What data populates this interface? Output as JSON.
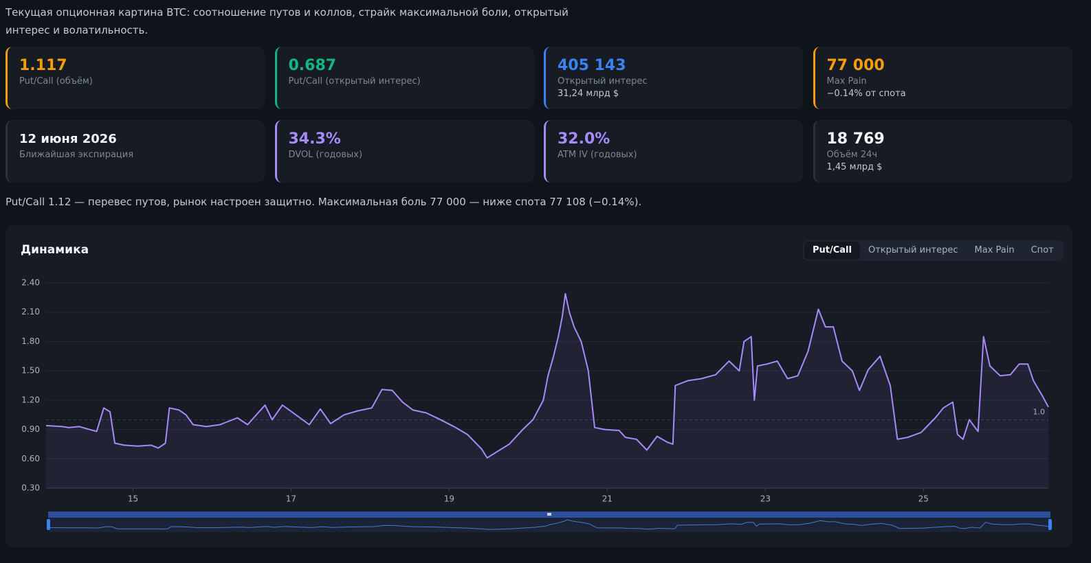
{
  "header": {
    "description": "Текущая опционная картина BTC: соотношение путов и коллов, страйк максимальной боли, открытый интерес и волатильность."
  },
  "cards": [
    {
      "value": "1.117",
      "label": "Put/Call (объём)",
      "color": "#f59e0b"
    },
    {
      "value": "0.687",
      "label": "Put/Call (открытый интерес)",
      "color": "#10b981"
    },
    {
      "value": "405 143",
      "label": "Открытый интерес",
      "sub": "31,24 млрд $",
      "color": "#3b82f6"
    },
    {
      "value": "77 000",
      "label": "Max Pain",
      "sub": "−0.14% от спота",
      "color": "#f59e0b"
    },
    {
      "value": "12 июня 2026",
      "label": "Ближайшая экспирация",
      "color": "#f1f5f9"
    },
    {
      "value": "34.3%",
      "label": "DVOL (годовых)",
      "color": "#a78bfa"
    },
    {
      "value": "32.0%",
      "label": "ATM IV (годовых)",
      "color": "#a78bfa"
    },
    {
      "value": "18 769",
      "label": "Объём 24ч",
      "sub": "1,45 млрд $",
      "color": "#f1f5f9"
    }
  ],
  "summary": "Put/Call 1.12 — перевес путов, рынок настроен защитно. Максимальная боль 77 000 — ниже спота 77 108 (−0.14%).",
  "panel": {
    "title": "Динамика",
    "tabs": [
      "Put/Call",
      "Открытый интерес",
      "Max Pain",
      "Спот"
    ],
    "active_tab": 0
  },
  "chart_data": {
    "type": "line",
    "color": "#a78bfa",
    "grid": true,
    "x": [
      13.9,
      14.1,
      14.19,
      14.32,
      14.45,
      14.54,
      14.63,
      14.71,
      14.77,
      14.89,
      15.06,
      15.23,
      15.32,
      15.41,
      15.46,
      15.58,
      15.67,
      15.76,
      15.93,
      16.1,
      16.32,
      16.45,
      16.67,
      16.76,
      16.89,
      17.06,
      17.23,
      17.37,
      17.5,
      17.67,
      17.84,
      18.02,
      18.15,
      18.28,
      18.41,
      18.54,
      18.71,
      18.89,
      19.06,
      19.23,
      19.41,
      19.48,
      19.58,
      19.76,
      19.93,
      20.06,
      20.19,
      20.25,
      20.32,
      20.38,
      20.43,
      20.47,
      20.52,
      20.58,
      20.67,
      20.76,
      20.84,
      20.97,
      21.15,
      21.23,
      21.37,
      21.5,
      21.63,
      21.76,
      21.83,
      21.86,
      22.02,
      22.19,
      22.37,
      22.54,
      22.67,
      22.73,
      22.82,
      22.86,
      22.9,
      23.02,
      23.15,
      23.28,
      23.41,
      23.54,
      23.67,
      23.76,
      23.86,
      23.97,
      24.1,
      24.19,
      24.3,
      24.45,
      24.58,
      24.67,
      24.8,
      24.97,
      25.15,
      25.25,
      25.37,
      25.43,
      25.5,
      25.58,
      25.69,
      25.76,
      25.84,
      25.97,
      26.1,
      26.21,
      26.32,
      26.39,
      26.5,
      26.58
    ],
    "values": [
      0.94,
      0.93,
      0.92,
      0.93,
      0.9,
      0.88,
      1.12,
      1.08,
      0.76,
      0.74,
      0.73,
      0.74,
      0.71,
      0.76,
      1.12,
      1.1,
      1.05,
      0.95,
      0.93,
      0.95,
      1.02,
      0.95,
      1.15,
      1.0,
      1.15,
      1.05,
      0.95,
      1.11,
      0.96,
      1.05,
      1.09,
      1.12,
      1.31,
      1.3,
      1.18,
      1.1,
      1.07,
      1.0,
      0.93,
      0.85,
      0.7,
      0.61,
      0.66,
      0.75,
      0.9,
      1.0,
      1.2,
      1.45,
      1.65,
      1.85,
      2.05,
      2.29,
      2.1,
      1.95,
      1.8,
      1.5,
      0.92,
      0.9,
      0.89,
      0.82,
      0.8,
      0.69,
      0.83,
      0.77,
      0.75,
      1.35,
      1.4,
      1.42,
      1.46,
      1.6,
      1.5,
      1.8,
      1.85,
      1.2,
      1.55,
      1.57,
      1.6,
      1.42,
      1.45,
      1.7,
      2.13,
      1.95,
      1.95,
      1.6,
      1.5,
      1.3,
      1.51,
      1.65,
      1.35,
      0.8,
      0.82,
      0.87,
      1.02,
      1.12,
      1.18,
      0.85,
      0.8,
      1.0,
      0.88,
      1.85,
      1.55,
      1.45,
      1.46,
      1.57,
      1.57,
      1.4,
      1.25,
      1.13
    ],
    "xlim": [
      13.9,
      26.58
    ],
    "xticks": [
      15,
      17,
      19,
      21,
      23,
      25
    ],
    "ylim": [
      0.3,
      2.4
    ],
    "yticks": [
      {
        "value": 0.3,
        "label": "0.30"
      },
      {
        "value": 0.6,
        "label": "0.60"
      },
      {
        "value": 0.9,
        "label": "0.90"
      },
      {
        "value": 1.2,
        "label": "1.20"
      },
      {
        "value": 1.5,
        "label": "1.50"
      },
      {
        "value": 1.8,
        "label": "1.80"
      },
      {
        "value": 2.1,
        "label": "2.10"
      },
      {
        "value": 2.4,
        "label": "2.40"
      }
    ],
    "reference_line": {
      "value": 1,
      "label": "1.0"
    }
  }
}
